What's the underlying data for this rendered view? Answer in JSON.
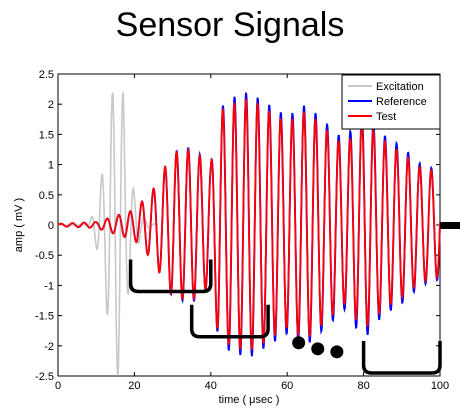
{
  "chart_data": {
    "type": "line",
    "title": "Sensor Signals",
    "xlabel": "time ( μsec )",
    "ylabel": "amp ( mV )",
    "xlim": [
      0,
      100
    ],
    "ylim": [
      -2.5,
      2.5
    ],
    "xticks": [
      0,
      20,
      40,
      60,
      80,
      100
    ],
    "yticks": [
      2.5,
      2,
      1.5,
      1,
      0.5,
      0,
      -0.5,
      -1,
      -1.5,
      -2,
      -2.5
    ],
    "legend_position": "top-right",
    "series": [
      {
        "name": "Excitation",
        "color": "#c8c8c8",
        "description_points": {
          "t": [
            0,
            8,
            10,
            12,
            14,
            15,
            16,
            17,
            18,
            20,
            22,
            24,
            26
          ],
          "env": [
            0,
            0,
            0.35,
            1.0,
            2.1,
            2.45,
            2.5,
            2.2,
            1.3,
            0.5,
            0.15,
            0.05,
            0
          ]
        }
      },
      {
        "name": "Reference",
        "color": "#0000ff",
        "envelope": {
          "t": [
            0,
            10,
            20,
            25,
            30,
            35,
            40,
            42,
            45,
            50,
            55,
            60,
            65,
            70,
            75,
            80,
            85,
            90,
            95,
            100
          ],
          "amp": [
            0.02,
            0.05,
            0.25,
            0.6,
            1.2,
            1.3,
            1.0,
            1.9,
            2.1,
            2.2,
            2.0,
            1.8,
            2.0,
            1.7,
            1.4,
            1.9,
            1.5,
            1.3,
            1.0,
            0.9
          ]
        }
      },
      {
        "name": "Test",
        "color": "#ff0000",
        "envelope": {
          "t": [
            0,
            10,
            20,
            25,
            30,
            35,
            40,
            42,
            45,
            50,
            55,
            60,
            65,
            70,
            75,
            80,
            85,
            90,
            95,
            100
          ],
          "amp": [
            0.02,
            0.05,
            0.25,
            0.6,
            1.2,
            1.25,
            1.0,
            1.85,
            2.0,
            2.1,
            1.9,
            1.7,
            1.9,
            1.6,
            1.3,
            1.75,
            1.4,
            1.2,
            0.95,
            0.85
          ]
        }
      }
    ],
    "annotations": [
      {
        "type": "bracket",
        "x_range": [
          19,
          40
        ],
        "y": -1.1
      },
      {
        "type": "bracket",
        "x_range": [
          35,
          55
        ],
        "y": -1.85
      },
      {
        "type": "dots",
        "x": [
          63,
          68,
          73
        ],
        "y": [
          -1.95,
          -2.05,
          -2.1
        ]
      },
      {
        "type": "bracket",
        "x_range": [
          80,
          100
        ],
        "y": -2.45
      }
    ]
  }
}
